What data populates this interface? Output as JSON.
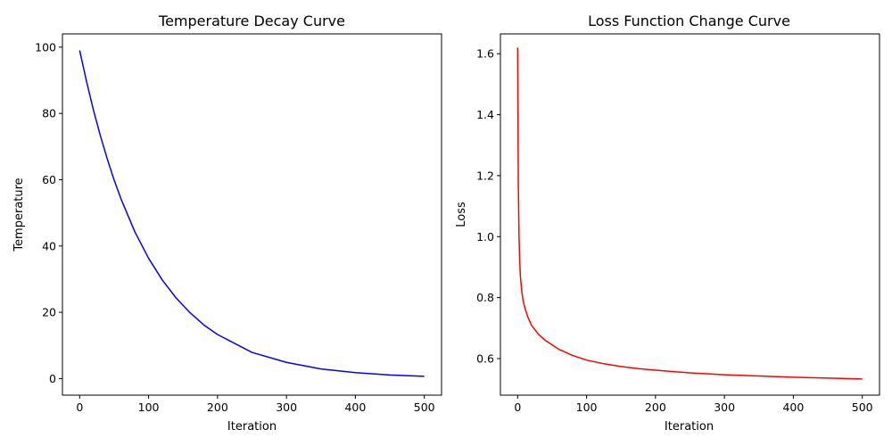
{
  "chart_data": [
    {
      "type": "line",
      "title": "Temperature Decay Curve",
      "xlabel": "Iteration",
      "ylabel": "Temperature",
      "xlim": [
        -25,
        525
      ],
      "ylim": [
        -5,
        104
      ],
      "xticks": [
        0,
        100,
        200,
        300,
        400,
        500
      ],
      "yticks": [
        0,
        20,
        40,
        60,
        80,
        100
      ],
      "grid": false,
      "series": [
        {
          "name": "Temperature",
          "color": "#0000ff",
          "x": [
            0,
            10,
            20,
            30,
            40,
            50,
            60,
            80,
            100,
            120,
            140,
            160,
            180,
            200,
            250,
            300,
            350,
            400,
            450,
            500
          ],
          "values": [
            99.0,
            89.6,
            81.0,
            73.3,
            66.3,
            59.9,
            54.2,
            44.3,
            36.3,
            29.7,
            24.3,
            19.9,
            16.2,
            13.3,
            7.9,
            4.9,
            2.9,
            1.8,
            1.1,
            0.7
          ]
        }
      ]
    },
    {
      "type": "line",
      "title": "Loss Function Change Curve",
      "xlabel": "Iteration",
      "ylabel": "Loss",
      "xlim": [
        -25,
        525
      ],
      "ylim": [
        0.48,
        1.665
      ],
      "xticks": [
        0,
        100,
        200,
        300,
        400,
        500
      ],
      "yticks": [
        0.6,
        0.8,
        1.0,
        1.2,
        1.4,
        1.6
      ],
      "ytick_labels": [
        "0.6",
        "0.8",
        "1.0",
        "1.2",
        "1.4",
        "1.6"
      ],
      "grid": false,
      "series": [
        {
          "name": "Loss",
          "color": "#ff0000",
          "x": [
            0,
            1,
            2,
            3,
            4,
            5,
            6,
            8,
            10,
            12,
            15,
            20,
            25,
            30,
            40,
            50,
            60,
            80,
            100,
            125,
            150,
            175,
            200,
            250,
            300,
            350,
            400,
            450,
            500
          ],
          "values": [
            1.62,
            1.17,
            1.0,
            0.92,
            0.87,
            0.845,
            0.82,
            0.79,
            0.77,
            0.755,
            0.735,
            0.71,
            0.695,
            0.68,
            0.66,
            0.645,
            0.63,
            0.61,
            0.595,
            0.583,
            0.574,
            0.567,
            0.562,
            0.553,
            0.547,
            0.543,
            0.539,
            0.536,
            0.533
          ]
        }
      ]
    }
  ]
}
